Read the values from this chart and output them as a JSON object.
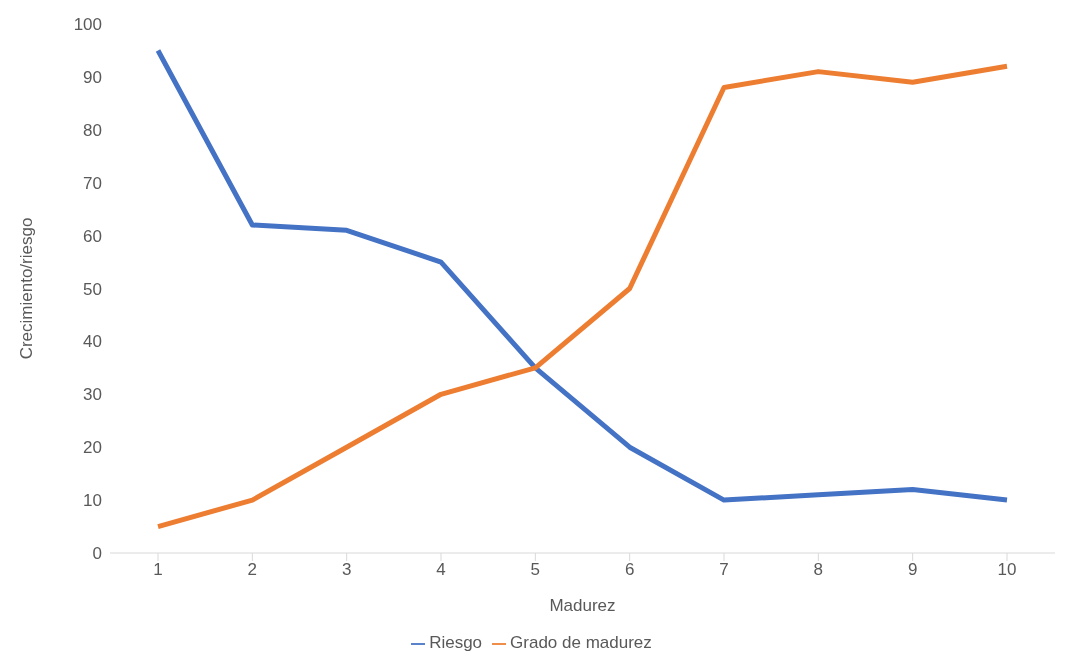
{
  "chart_data": {
    "type": "line",
    "xlabel": "Madurez",
    "ylabel": "Crecimiento/riesgo",
    "categories": [
      "1",
      "2",
      "3",
      "4",
      "5",
      "6",
      "7",
      "8",
      "9",
      "10"
    ],
    "series": [
      {
        "name": "Riesgo",
        "color": "#4472c4",
        "values": [
          95,
          62,
          61,
          55,
          35,
          20,
          10,
          11,
          12,
          10
        ]
      },
      {
        "name": "Grado de madurez",
        "color": "#ed7d31",
        "values": [
          5,
          10,
          20,
          30,
          35,
          50,
          88,
          91,
          89,
          92
        ]
      }
    ],
    "ylim": [
      0,
      100
    ],
    "yticks": [
      0,
      10,
      20,
      30,
      40,
      50,
      60,
      70,
      80,
      90,
      100
    ],
    "legend": "bottom"
  }
}
